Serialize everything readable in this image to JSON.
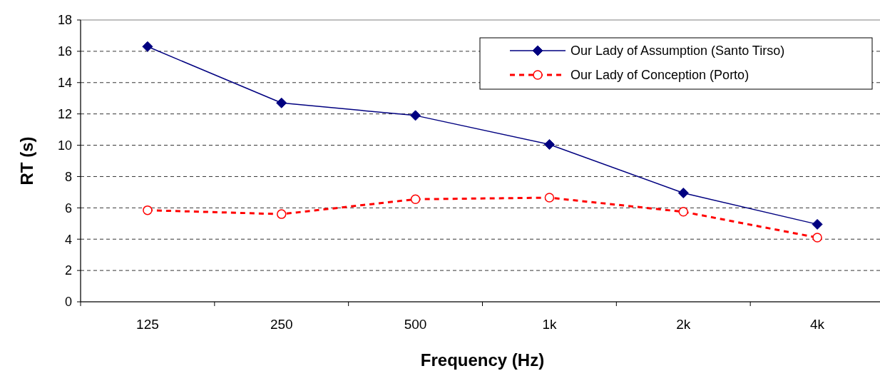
{
  "chart_data": {
    "type": "line",
    "xlabel": "Frequency (Hz)",
    "ylabel": "RT (s)",
    "categories": [
      "125",
      "250",
      "500",
      "1k",
      "2k",
      "4k"
    ],
    "series": [
      {
        "name": "Our Lady of Assumption (Santo Tirso)",
        "color": "#000080",
        "values": [
          16.3,
          12.7,
          11.9,
          10.05,
          6.95,
          4.95
        ],
        "marker": "diamond",
        "line_style": "solid"
      },
      {
        "name": "Our Lady of Conception (Porto)",
        "color": "#ff0000",
        "values": [
          5.85,
          5.6,
          6.55,
          6.65,
          5.75,
          4.1
        ],
        "marker": "circle",
        "line_style": "dashed"
      }
    ],
    "ylim": [
      0,
      18
    ],
    "yticks": [
      0,
      2,
      4,
      6,
      8,
      10,
      12,
      14,
      16,
      18
    ],
    "grid": "y",
    "legend": "top right"
  }
}
